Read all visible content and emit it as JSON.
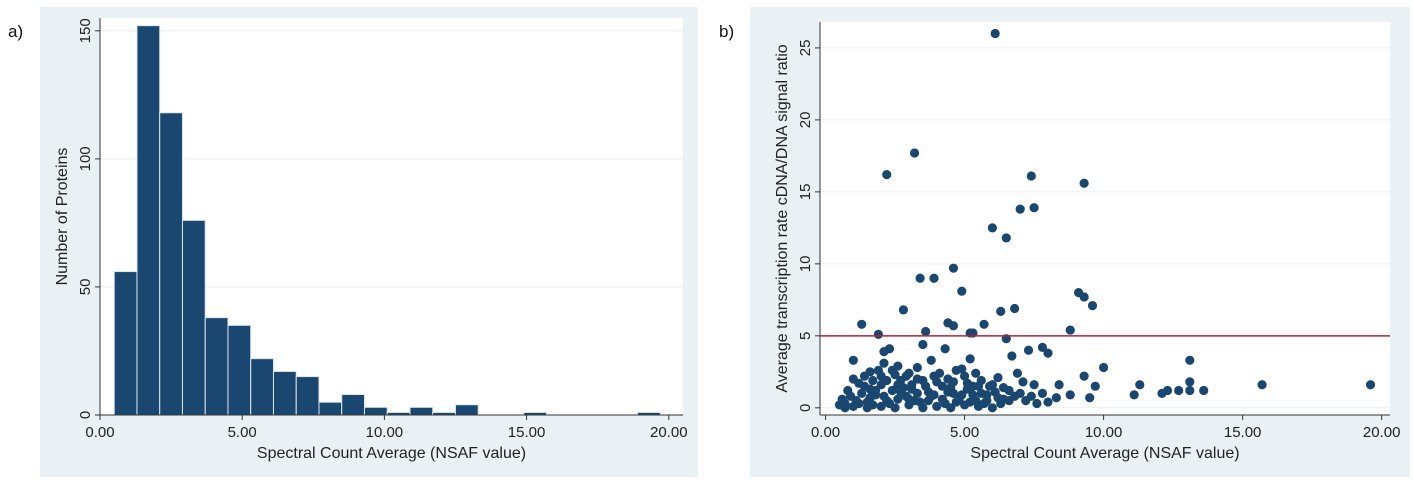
{
  "panels": {
    "a_label": "a)",
    "b_label": "b)"
  },
  "colors": {
    "panel_bg": "#eaf1f4",
    "plot_bg": "#ffffff",
    "bar_fill": "#1a4770",
    "bar_edge": "#dce6ec",
    "point": "#1a4770",
    "ref_line": "#b22234",
    "grid": "#e6eef1"
  },
  "chart_data": [
    {
      "type": "bar",
      "xlabel": "Spectral Count Average (NSAF value)",
      "ylabel": "Number of Proteins",
      "xlim": [
        0,
        20.5
      ],
      "ylim": [
        0,
        155
      ],
      "xticks": [
        0,
        5,
        10,
        15,
        20
      ],
      "xtick_labels": [
        "0.00",
        "5.00",
        "10.00",
        "15.00",
        "20.00"
      ],
      "yticks": [
        0,
        50,
        100,
        150
      ],
      "ytick_labels": [
        "0",
        "50",
        "100",
        "150"
      ],
      "grid": "horizontal",
      "bin_edges": [
        0.5,
        1.3,
        2.1,
        2.9,
        3.7,
        4.5,
        5.3,
        6.1,
        6.9,
        7.7,
        8.5,
        9.3,
        10.1,
        10.9,
        11.7,
        12.5,
        13.3,
        14.1,
        14.9,
        15.7,
        16.5,
        17.3,
        18.1,
        18.9,
        19.7
      ],
      "values": [
        56,
        152,
        118,
        76,
        38,
        35,
        22,
        17,
        15,
        5,
        8,
        3,
        1,
        3,
        1,
        4,
        0,
        0,
        1,
        0,
        0,
        0,
        0,
        1
      ]
    },
    {
      "type": "scatter",
      "xlabel": "Spectral Count Average (NSAF value)",
      "ylabel": "Average transcription rate cDNA/DNA signal ratio",
      "xlim": [
        -0.2,
        20.3
      ],
      "ylim": [
        -0.5,
        26.8
      ],
      "xticks": [
        0,
        5,
        10,
        15,
        20
      ],
      "xtick_labels": [
        "0.00",
        "5.00",
        "10.00",
        "15.00",
        "20.00"
      ],
      "yticks": [
        0,
        5,
        10,
        15,
        20,
        25
      ],
      "ytick_labels": [
        "0",
        "5",
        "10",
        "15",
        "20",
        "25"
      ],
      "grid": "horizontal",
      "reference_line_y": 5,
      "points": [
        [
          6.1,
          26.0
        ],
        [
          3.2,
          17.7
        ],
        [
          2.2,
          16.2
        ],
        [
          7.4,
          16.1
        ],
        [
          9.3,
          15.6
        ],
        [
          7.0,
          13.8
        ],
        [
          7.5,
          13.9
        ],
        [
          6.0,
          12.5
        ],
        [
          6.5,
          11.8
        ],
        [
          3.4,
          9.0
        ],
        [
          3.9,
          9.0
        ],
        [
          4.6,
          9.7
        ],
        [
          4.9,
          8.1
        ],
        [
          9.1,
          8.0
        ],
        [
          9.3,
          7.7
        ],
        [
          9.6,
          7.1
        ],
        [
          2.8,
          6.8
        ],
        [
          6.3,
          6.7
        ],
        [
          6.8,
          6.9
        ],
        [
          1.3,
          5.8
        ],
        [
          4.4,
          5.9
        ],
        [
          4.6,
          5.7
        ],
        [
          5.7,
          5.8
        ],
        [
          8.8,
          5.4
        ],
        [
          1.9,
          5.1
        ],
        [
          3.6,
          5.3
        ],
        [
          5.2,
          5.2
        ],
        [
          5.3,
          5.2
        ],
        [
          6.5,
          4.8
        ],
        [
          3.5,
          4.4
        ],
        [
          4.3,
          4.1
        ],
        [
          2.1,
          3.9
        ],
        [
          2.3,
          4.1
        ],
        [
          7.3,
          4.0
        ],
        [
          7.8,
          4.2
        ],
        [
          8.0,
          3.8
        ],
        [
          1.0,
          3.3
        ],
        [
          3.8,
          3.3
        ],
        [
          5.2,
          3.4
        ],
        [
          6.7,
          3.6
        ],
        [
          13.1,
          3.3
        ],
        [
          9.3,
          2.2
        ],
        [
          10.0,
          2.8
        ],
        [
          6.9,
          2.4
        ],
        [
          6.2,
          2.1
        ],
        [
          4.7,
          2.6
        ],
        [
          2.6,
          2.9
        ],
        [
          1.6,
          2.5
        ],
        [
          1.0,
          2.0
        ],
        [
          3.0,
          2.4
        ],
        [
          8.4,
          1.6
        ],
        [
          9.7,
          1.5
        ],
        [
          11.3,
          1.6
        ],
        [
          12.1,
          1.0
        ],
        [
          12.3,
          1.2
        ],
        [
          12.7,
          1.2
        ],
        [
          13.1,
          1.2
        ],
        [
          13.1,
          1.8
        ],
        [
          13.6,
          1.2
        ],
        [
          15.7,
          1.6
        ],
        [
          19.6,
          1.6
        ],
        [
          11.1,
          0.9
        ],
        [
          9.5,
          0.7
        ],
        [
          8.8,
          0.9
        ],
        [
          8.3,
          0.7
        ],
        [
          7.8,
          1.0
        ],
        [
          7.5,
          1.6
        ],
        [
          7.1,
          1.8
        ],
        [
          6.6,
          1.2
        ],
        [
          6.4,
          0.6
        ],
        [
          5.9,
          1.5
        ],
        [
          5.6,
          1.0
        ],
        [
          5.4,
          0.5
        ],
        [
          5.1,
          1.7
        ],
        [
          4.9,
          0.9
        ],
        [
          4.5,
          1.4
        ],
        [
          4.2,
          0.6
        ],
        [
          4.0,
          1.8
        ],
        [
          3.7,
          1.1
        ],
        [
          3.4,
          0.4
        ],
        [
          3.1,
          1.6
        ],
        [
          2.9,
          0.8
        ],
        [
          2.7,
          1.9
        ],
        [
          2.4,
          1.2
        ],
        [
          2.2,
          0.5
        ],
        [
          2.0,
          1.6
        ],
        [
          1.8,
          0.9
        ],
        [
          1.6,
          1.3
        ],
        [
          1.5,
          0.4
        ],
        [
          1.3,
          1.0
        ],
        [
          1.1,
          0.5
        ],
        [
          0.9,
          0.8
        ],
        [
          0.7,
          0.3
        ],
        [
          0.6,
          0.6
        ],
        [
          0.5,
          0.2
        ],
        [
          0.8,
          1.2
        ],
        [
          1.2,
          1.7
        ],
        [
          1.4,
          2.2
        ],
        [
          1.7,
          1.9
        ],
        [
          1.9,
          2.6
        ],
        [
          2.1,
          3.1
        ],
        [
          2.5,
          2.3
        ],
        [
          2.8,
          1.4
        ],
        [
          3.0,
          0.6
        ],
        [
          3.3,
          2.8
        ],
        [
          3.5,
          1.9
        ],
        [
          3.8,
          0.8
        ],
        [
          4.1,
          2.4
        ],
        [
          4.4,
          1.1
        ],
        [
          4.7,
          0.4
        ],
        [
          5.0,
          2.2
        ],
        [
          5.3,
          0.9
        ],
        [
          5.6,
          1.9
        ],
        [
          5.8,
          0.5
        ],
        [
          6.1,
          1.1
        ],
        [
          6.3,
          0.3
        ],
        [
          6.8,
          0.8
        ],
        [
          7.2,
          0.5
        ],
        [
          7.6,
          0.3
        ],
        [
          8.0,
          0.4
        ],
        [
          1.0,
          0.1
        ],
        [
          1.5,
          0.0
        ],
        [
          2.0,
          0.1
        ],
        [
          2.5,
          0.0
        ],
        [
          3.0,
          0.2
        ],
        [
          3.5,
          0.0
        ],
        [
          4.0,
          0.1
        ],
        [
          4.5,
          0.0
        ],
        [
          5.0,
          0.2
        ],
        [
          5.5,
          0.1
        ],
        [
          6.0,
          0.0
        ],
        [
          0.7,
          0.0
        ],
        [
          1.2,
          0.3
        ],
        [
          1.7,
          0.2
        ],
        [
          2.3,
          0.3
        ],
        [
          2.6,
          0.6
        ],
        [
          3.2,
          0.5
        ],
        [
          3.7,
          0.5
        ],
        [
          4.3,
          0.3
        ],
        [
          4.8,
          0.6
        ],
        [
          5.2,
          0.4
        ],
        [
          5.7,
          0.3
        ],
        [
          1.4,
          1.5
        ],
        [
          1.8,
          1.2
        ],
        [
          2.2,
          1.9
        ],
        [
          2.6,
          1.6
        ],
        [
          3.1,
          1.3
        ],
        [
          3.6,
          1.5
        ],
        [
          4.2,
          1.5
        ],
        [
          4.6,
          1.8
        ],
        [
          5.1,
          1.3
        ],
        [
          5.5,
          1.5
        ],
        [
          6.0,
          1.6
        ],
        [
          6.4,
          1.4
        ],
        [
          2.0,
          2.2
        ],
        [
          2.4,
          2.6
        ],
        [
          2.9,
          2.2
        ],
        [
          3.3,
          2.0
        ],
        [
          3.9,
          2.2
        ],
        [
          4.4,
          2.0
        ],
        [
          4.9,
          2.7
        ],
        [
          5.4,
          2.4
        ],
        [
          1.6,
          0.7
        ],
        [
          2.1,
          0.8
        ],
        [
          2.7,
          1.1
        ],
        [
          3.3,
          1.0
        ],
        [
          3.9,
          0.9
        ],
        [
          4.6,
          1.0
        ],
        [
          5.3,
          1.5
        ],
        [
          5.8,
          0.9
        ],
        [
          6.2,
          0.7
        ],
        [
          6.6,
          0.5
        ],
        [
          7.0,
          1.0
        ],
        [
          7.4,
          0.8
        ]
      ]
    }
  ]
}
